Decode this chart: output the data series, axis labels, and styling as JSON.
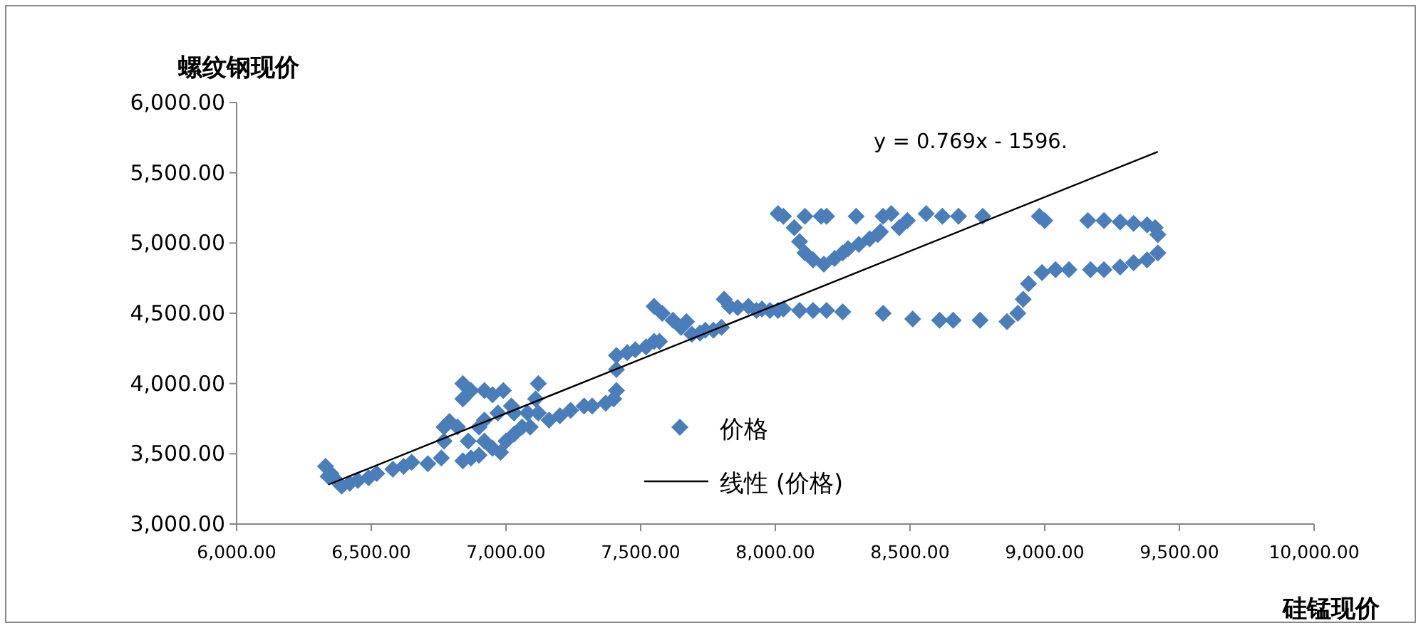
{
  "chart_data": {
    "type": "scatter",
    "xlabel": "硅锰现价",
    "ylabel": "螺纹钢现价",
    "annotations": [
      "y = 0.769x - 1596."
    ],
    "xlim": [
      6000,
      10000
    ],
    "ylim": [
      3000,
      6000
    ],
    "xticks": [
      {
        "value": 6000,
        "label": "6,000.00"
      },
      {
        "value": 6500,
        "label": "6,500.00"
      },
      {
        "value": 7000,
        "label": "7,000.00"
      },
      {
        "value": 7500,
        "label": "7,500.00"
      },
      {
        "value": 8000,
        "label": "8,000.00"
      },
      {
        "value": 8500,
        "label": "8,500.00"
      },
      {
        "value": 9000,
        "label": "9,000.00"
      },
      {
        "value": 9500,
        "label": "9,500.00"
      },
      {
        "value": 10000,
        "label": "10,000.00"
      }
    ],
    "yticks": [
      {
        "value": 3000,
        "label": "3,000.00"
      },
      {
        "value": 3500,
        "label": "3,500.00"
      },
      {
        "value": 4000,
        "label": "4,000.00"
      },
      {
        "value": 4500,
        "label": "4,500.00"
      },
      {
        "value": 5000,
        "label": "5,000.00"
      },
      {
        "value": 5500,
        "label": "5,500.00"
      },
      {
        "value": 6000,
        "label": "6,000.00"
      }
    ],
    "legend": "bottom",
    "series": [
      {
        "name": "价格",
        "type": "scatter",
        "color": "#4a7ebb",
        "marker": "diamond",
        "x": [
          6330,
          6350,
          6370,
          6390,
          6420,
          6340,
          6450,
          6490,
          6520,
          6580,
          6620,
          6650,
          6710,
          6760,
          6770,
          6770,
          6790,
          6820,
          6840,
          6870,
          6900,
          6860,
          6840,
          6840,
          6870,
          6920,
          6950,
          6990,
          7020,
          7030,
          6970,
          6920,
          6900,
          6920,
          6950,
          6980,
          7000,
          7030,
          7060,
          7090,
          7110,
          7120,
          7120,
          7080,
          7160,
          7200,
          7240,
          7290,
          7320,
          7370,
          7400,
          7410,
          7410,
          7410,
          7450,
          7480,
          7520,
          7550,
          7570,
          7550,
          7580,
          7620,
          7650,
          7670,
          7690,
          7720,
          7740,
          7770,
          7800,
          7810,
          7830,
          7860,
          7900,
          7930,
          7950,
          7980,
          8010,
          8030,
          8090,
          8140,
          8190,
          8250,
          8010,
          8030,
          8070,
          8090,
          8110,
          8140,
          8180,
          8220,
          8250,
          8270,
          8310,
          8350,
          8390,
          8400,
          8430,
          8380,
          8460,
          8490,
          8560,
          8620,
          8680,
          8770,
          8110,
          8170,
          8190,
          8300,
          8400,
          8510,
          8610,
          8660,
          8760,
          8860,
          8900,
          8920,
          8940,
          8990,
          9040,
          9090,
          9170,
          9220,
          9280,
          9330,
          9380,
          9420,
          9420,
          9410,
          9380,
          9330,
          9280,
          9220,
          9160,
          9000,
          8980
        ],
        "values": [
          3410,
          3360,
          3310,
          3270,
          3290,
          3340,
          3310,
          3330,
          3360,
          3390,
          3410,
          3440,
          3430,
          3470,
          3590,
          3690,
          3730,
          3690,
          3450,
          3470,
          3490,
          3590,
          4000,
          3890,
          3950,
          3950,
          3920,
          3950,
          3840,
          3790,
          3790,
          3740,
          3690,
          3590,
          3540,
          3510,
          3590,
          3640,
          3690,
          3690,
          3890,
          4000,
          3790,
          3790,
          3740,
          3770,
          3810,
          3840,
          3840,
          3860,
          3890,
          3950,
          4100,
          4200,
          4220,
          4240,
          4260,
          4300,
          4300,
          4550,
          4500,
          4450,
          4400,
          4440,
          4350,
          4360,
          4380,
          4380,
          4400,
          4600,
          4550,
          4540,
          4550,
          4520,
          4530,
          4520,
          4520,
          4530,
          4520,
          4520,
          4520,
          4510,
          5210,
          5190,
          5110,
          5010,
          4930,
          4880,
          4850,
          4890,
          4930,
          4960,
          4990,
          5030,
          5080,
          5190,
          5210,
          5060,
          5110,
          5160,
          5210,
          5190,
          5190,
          5190,
          5190,
          5190,
          5190,
          5190,
          4500,
          4460,
          4450,
          4450,
          4450,
          4440,
          4500,
          4600,
          4710,
          4790,
          4810,
          4810,
          4810,
          4810,
          4830,
          4860,
          4880,
          4930,
          5060,
          5110,
          5130,
          5140,
          5150,
          5160,
          5160,
          5160,
          5190
        ]
      },
      {
        "name": "线性 (价格)",
        "type": "line",
        "color": "#000000",
        "x": [
          6340,
          9420
        ],
        "values": [
          3280,
          5650
        ]
      }
    ]
  }
}
